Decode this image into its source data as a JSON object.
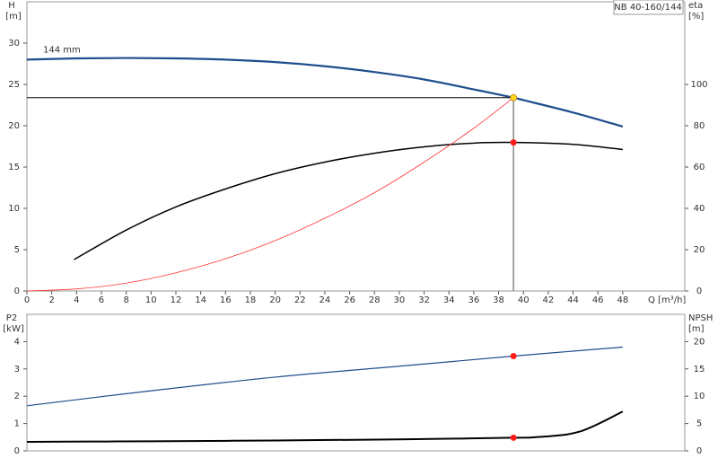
{
  "chart_data": [
    {
      "type": "line",
      "model_label": "NB 40-160/144",
      "x_label": "Q [m³/h]",
      "y_label": "H",
      "y_unit": "[m]",
      "y2_label": "eta",
      "y2_unit": "[%]",
      "xlim": [
        0,
        53
      ],
      "xticks": [
        0,
        2,
        4,
        6,
        8,
        10,
        12,
        14,
        16,
        18,
        20,
        22,
        24,
        26,
        28,
        30,
        32,
        34,
        36,
        38,
        40,
        42,
        44,
        46,
        48
      ],
      "ylim": [
        0,
        35
      ],
      "yticks": [
        0,
        5,
        10,
        15,
        20,
        25,
        30
      ],
      "y2lim": [
        0,
        140
      ],
      "y2ticks": [
        0,
        20,
        40,
        60,
        80,
        100
      ],
      "series": [
        {
          "name": "144 mm",
          "color": "#1f4e8c",
          "width": 2.2,
          "x": [
            0,
            4,
            8,
            12,
            16,
            20,
            24,
            28,
            32,
            36,
            39.2,
            40,
            44,
            48
          ],
          "values": [
            28.0,
            28.15,
            28.2,
            28.15,
            28.0,
            27.7,
            27.2,
            26.5,
            25.6,
            24.4,
            23.4,
            23.1,
            21.6,
            19.9
          ]
        },
        {
          "color": "#000000",
          "axis": "y2",
          "width": 1.5,
          "x": [
            3.8,
            8,
            12,
            16,
            20,
            24,
            28,
            32,
            36,
            39.2,
            44,
            48
          ],
          "values": [
            15.2,
            29.5,
            40.7,
            49.4,
            56.8,
            62.4,
            66.7,
            69.8,
            71.6,
            71.9,
            71,
            68.5
          ]
        },
        {
          "color": "#ff3333",
          "width": 0.8,
          "x": [
            0,
            4,
            8,
            12,
            16,
            20,
            24,
            28,
            32,
            36,
            39.2
          ],
          "values": [
            0,
            0.25,
            0.95,
            2.2,
            3.9,
            6.1,
            8.8,
            11.9,
            15.6,
            19.7,
            23.4
          ]
        }
      ],
      "markers": [
        {
          "x": 39.2,
          "value": 23.4,
          "color": "#ffd21f",
          "guides": true
        },
        {
          "x": 39.2,
          "value": 71.9,
          "axis": "y2",
          "color": "#ff1a1a"
        }
      ]
    },
    {
      "type": "line",
      "y_label": "P2",
      "y_unit": "[kW]",
      "y2_label": "NPSH",
      "y2_unit": "[m]",
      "xlim": [
        0,
        53
      ],
      "ylim": [
        0,
        5
      ],
      "yticks": [
        0,
        1,
        2,
        3,
        4
      ],
      "y2lim": [
        0,
        25
      ],
      "y2ticks": [
        0,
        5,
        10,
        15,
        20
      ],
      "series": [
        {
          "color": "#1f4e8c",
          "width": 1.2,
          "x": [
            0,
            10,
            20,
            30,
            39.2,
            48
          ],
          "values": [
            1.65,
            2.2,
            2.7,
            3.1,
            3.47,
            3.8
          ]
        },
        {
          "color": "#000000",
          "axis": "y2",
          "width": 2,
          "x": [
            0,
            5,
            10,
            20,
            30,
            35,
            39.2,
            41,
            44.5,
            48
          ],
          "values": [
            1.65,
            1.7,
            1.75,
            1.9,
            2.1,
            2.25,
            2.4,
            2.5,
            3.5,
            7.2
          ]
        }
      ],
      "markers": [
        {
          "x": 39.2,
          "value": 3.47,
          "color": "#ff1a1a"
        },
        {
          "x": 39.2,
          "value": 2.4,
          "axis": "y2",
          "color": "#ff1a1a"
        }
      ]
    }
  ]
}
